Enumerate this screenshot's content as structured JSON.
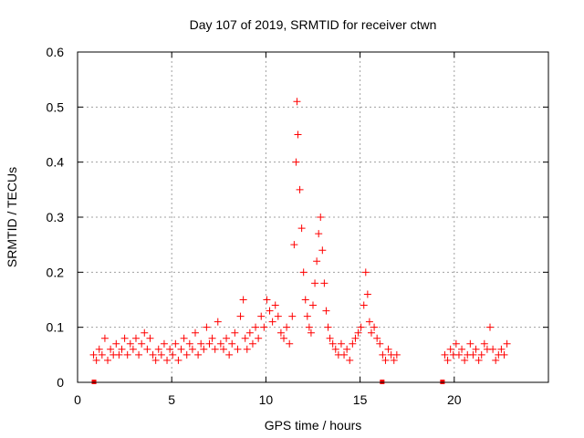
{
  "chart_data": {
    "type": "scatter",
    "title": "Day 107 of 2019, SRMTID for receiver ctwn",
    "xlabel": "GPS time / hours",
    "ylabel": "SRMTID / TECUs",
    "xlim": [
      0,
      25
    ],
    "ylim": [
      0,
      0.6
    ],
    "xticks": [
      0,
      5,
      10,
      15,
      20
    ],
    "yticks": [
      0,
      0.1,
      0.2,
      0.3,
      0.4,
      0.5,
      0.6
    ],
    "xtick_labels": [
      "0",
      "5",
      "10",
      "15",
      "20"
    ],
    "ytick_labels": [
      "0",
      "0.1",
      "0.2",
      "0.3",
      "0.4",
      "0.5",
      "0.6"
    ],
    "grid": true,
    "marker": "+",
    "color": "#ff0000",
    "series": [
      {
        "name": "SRMTID",
        "points": [
          [
            0.85,
            0.05
          ],
          [
            1.0,
            0.04
          ],
          [
            1.15,
            0.06
          ],
          [
            1.3,
            0.05
          ],
          [
            1.45,
            0.08
          ],
          [
            1.6,
            0.04
          ],
          [
            1.75,
            0.06
          ],
          [
            1.9,
            0.05
          ],
          [
            2.05,
            0.07
          ],
          [
            2.2,
            0.05
          ],
          [
            2.35,
            0.06
          ],
          [
            2.5,
            0.08
          ],
          [
            2.65,
            0.05
          ],
          [
            2.8,
            0.07
          ],
          [
            2.95,
            0.06
          ],
          [
            3.1,
            0.08
          ],
          [
            3.25,
            0.05
          ],
          [
            3.4,
            0.07
          ],
          [
            3.55,
            0.09
          ],
          [
            3.7,
            0.06
          ],
          [
            3.85,
            0.08
          ],
          [
            4.0,
            0.05
          ],
          [
            4.15,
            0.04
          ],
          [
            4.3,
            0.06
          ],
          [
            4.45,
            0.05
          ],
          [
            4.6,
            0.07
          ],
          [
            4.75,
            0.04
          ],
          [
            4.9,
            0.06
          ],
          [
            5.05,
            0.05
          ],
          [
            5.2,
            0.07
          ],
          [
            5.35,
            0.04
          ],
          [
            5.5,
            0.06
          ],
          [
            5.65,
            0.08
          ],
          [
            5.8,
            0.05
          ],
          [
            5.95,
            0.07
          ],
          [
            6.1,
            0.06
          ],
          [
            6.25,
            0.09
          ],
          [
            6.4,
            0.05
          ],
          [
            6.55,
            0.07
          ],
          [
            6.7,
            0.06
          ],
          [
            6.85,
            0.1
          ],
          [
            7.0,
            0.07
          ],
          [
            7.15,
            0.08
          ],
          [
            7.3,
            0.06
          ],
          [
            7.45,
            0.11
          ],
          [
            7.6,
            0.07
          ],
          [
            7.75,
            0.06
          ],
          [
            7.9,
            0.08
          ],
          [
            8.05,
            0.05
          ],
          [
            8.2,
            0.07
          ],
          [
            8.35,
            0.09
          ],
          [
            8.5,
            0.06
          ],
          [
            8.65,
            0.12
          ],
          [
            8.8,
            0.15
          ],
          [
            8.9,
            0.08
          ],
          [
            9.0,
            0.06
          ],
          [
            9.15,
            0.09
          ],
          [
            9.3,
            0.07
          ],
          [
            9.45,
            0.1
          ],
          [
            9.6,
            0.08
          ],
          [
            9.75,
            0.12
          ],
          [
            9.9,
            0.1
          ],
          [
            10.05,
            0.15
          ],
          [
            10.2,
            0.13
          ],
          [
            10.35,
            0.11
          ],
          [
            10.5,
            0.14
          ],
          [
            10.65,
            0.12
          ],
          [
            10.8,
            0.09
          ],
          [
            10.95,
            0.08
          ],
          [
            11.1,
            0.1
          ],
          [
            11.25,
            0.07
          ],
          [
            11.4,
            0.12
          ],
          [
            11.5,
            0.25
          ],
          [
            11.6,
            0.4
          ],
          [
            11.65,
            0.51
          ],
          [
            11.7,
            0.45
          ],
          [
            11.8,
            0.35
          ],
          [
            11.9,
            0.28
          ],
          [
            12.0,
            0.2
          ],
          [
            12.1,
            0.15
          ],
          [
            12.2,
            0.12
          ],
          [
            12.3,
            0.1
          ],
          [
            12.4,
            0.09
          ],
          [
            12.5,
            0.14
          ],
          [
            12.6,
            0.18
          ],
          [
            12.7,
            0.22
          ],
          [
            12.8,
            0.27
          ],
          [
            12.9,
            0.3
          ],
          [
            13.0,
            0.24
          ],
          [
            13.1,
            0.18
          ],
          [
            13.2,
            0.13
          ],
          [
            13.3,
            0.1
          ],
          [
            13.4,
            0.08
          ],
          [
            13.55,
            0.07
          ],
          [
            13.7,
            0.06
          ],
          [
            13.85,
            0.05
          ],
          [
            14.0,
            0.07
          ],
          [
            14.15,
            0.05
          ],
          [
            14.3,
            0.06
          ],
          [
            14.45,
            0.04
          ],
          [
            14.6,
            0.07
          ],
          [
            14.75,
            0.08
          ],
          [
            14.9,
            0.09
          ],
          [
            15.05,
            0.1
          ],
          [
            15.2,
            0.14
          ],
          [
            15.3,
            0.2
          ],
          [
            15.4,
            0.16
          ],
          [
            15.5,
            0.11
          ],
          [
            15.6,
            0.09
          ],
          [
            15.75,
            0.1
          ],
          [
            15.9,
            0.08
          ],
          [
            16.05,
            0.07
          ],
          [
            16.2,
            0.05
          ],
          [
            16.35,
            0.04
          ],
          [
            16.5,
            0.06
          ],
          [
            16.65,
            0.05
          ],
          [
            16.8,
            0.04
          ],
          [
            16.95,
            0.05
          ],
          [
            19.5,
            0.05
          ],
          [
            19.65,
            0.04
          ],
          [
            19.8,
            0.06
          ],
          [
            19.95,
            0.05
          ],
          [
            20.1,
            0.07
          ],
          [
            20.25,
            0.05
          ],
          [
            20.4,
            0.06
          ],
          [
            20.55,
            0.04
          ],
          [
            20.7,
            0.05
          ],
          [
            20.85,
            0.07
          ],
          [
            21.0,
            0.05
          ],
          [
            21.15,
            0.06
          ],
          [
            21.3,
            0.04
          ],
          [
            21.45,
            0.05
          ],
          [
            21.6,
            0.07
          ],
          [
            21.75,
            0.06
          ],
          [
            21.9,
            0.1
          ],
          [
            22.05,
            0.06
          ],
          [
            22.2,
            0.04
          ],
          [
            22.35,
            0.05
          ],
          [
            22.5,
            0.06
          ],
          [
            22.65,
            0.05
          ],
          [
            22.8,
            0.07
          ]
        ]
      }
    ],
    "gap_markers_x": [
      0.85,
      16.15,
      19.35
    ]
  }
}
